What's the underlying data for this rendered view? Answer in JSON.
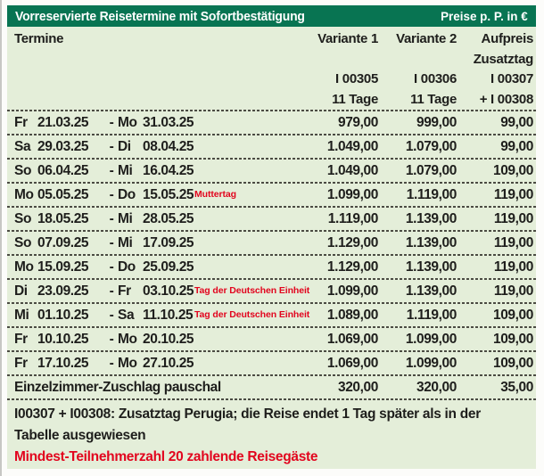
{
  "header": {
    "title": "Vorreservierte Reisetermine mit Sofortbestätigung",
    "price_note": "Preise p. P. in €"
  },
  "columns": {
    "termine": "Termine",
    "variante1": "Variante 1",
    "variante2": "Variante 2",
    "aufpreis": "Aufpreis",
    "zusatztag": "Zusatztag",
    "code_v1": "I 00305",
    "code_v2": "I 00306",
    "code_auf": "I 00307",
    "duration_v1": "11 Tage",
    "duration_v2": "11 Tage",
    "code_auf2": "+ I 00308"
  },
  "misc": {
    "range_separator": "-"
  },
  "rows": [
    {
      "wd1": "Fr",
      "d1": "21.03.25",
      "wd2": "Mo",
      "d2": "31.03.25",
      "note": "",
      "v1": "979,00",
      "v2": "999,00",
      "aufpreis": "99,00"
    },
    {
      "wd1": "Sa",
      "d1": "29.03.25",
      "wd2": "Di",
      "d2": "08.04.25",
      "note": "",
      "v1": "1.049,00",
      "v2": "1.079,00",
      "aufpreis": "99,00"
    },
    {
      "wd1": "So",
      "d1": "06.04.25",
      "wd2": "Mi",
      "d2": "16.04.25",
      "note": "",
      "v1": "1.049,00",
      "v2": "1.079,00",
      "aufpreis": "109,00"
    },
    {
      "wd1": "Mo",
      "d1": "05.05.25",
      "wd2": "Do",
      "d2": "15.05.25",
      "note": "Muttertag",
      "v1": "1.099,00",
      "v2": "1.119,00",
      "aufpreis": "119,00"
    },
    {
      "wd1": "So",
      "d1": "18.05.25",
      "wd2": "Mi",
      "d2": "28.05.25",
      "note": "",
      "v1": "1.119,00",
      "v2": "1.139,00",
      "aufpreis": "119,00"
    },
    {
      "wd1": "So",
      "d1": "07.09.25",
      "wd2": "Mi",
      "d2": "17.09.25",
      "note": "",
      "v1": "1.129,00",
      "v2": "1.139,00",
      "aufpreis": "119,00"
    },
    {
      "wd1": "Mo",
      "d1": "15.09.25",
      "wd2": "Do",
      "d2": "25.09.25",
      "note": "",
      "v1": "1.129,00",
      "v2": "1.139,00",
      "aufpreis": "119,00"
    },
    {
      "wd1": "Di",
      "d1": "23.09.25",
      "wd2": "Fr",
      "d2": "03.10.25",
      "note": "Tag der Deutschen Einheit",
      "v1": "1.099,00",
      "v2": "1.139,00",
      "aufpreis": "119,00"
    },
    {
      "wd1": "Mi",
      "d1": "01.10.25",
      "wd2": "Sa",
      "d2": "11.10.25",
      "note": "Tag der Deutschen Einheit",
      "v1": "1.089,00",
      "v2": "1.119,00",
      "aufpreis": "109,00"
    },
    {
      "wd1": "Fr",
      "d1": "10.10.25",
      "wd2": "Mo",
      "d2": "20.10.25",
      "note": "",
      "v1": "1.069,00",
      "v2": "1.099,00",
      "aufpreis": "109,00"
    },
    {
      "wd1": "Fr",
      "d1": "17.10.25",
      "wd2": "Mo",
      "d2": "27.10.25",
      "note": "",
      "v1": "1.069,00",
      "v2": "1.099,00",
      "aufpreis": "109,00"
    }
  ],
  "extra_row": {
    "label": "Einzelzimmer-Zuschlag pauschal",
    "v1": "320,00",
    "v2": "320,00",
    "aufpreis": "35,00"
  },
  "footnotes": {
    "zusatztag_note": "I00307 + I00308: Zusatztag Perugia; die Reise endet 1 Tag später als in der Tabelle ausgewiesen",
    "min_participants": "Mindest-Teilnehmerzahl 20 zahlende Reisegäste"
  },
  "colors": {
    "header_green": "#087452",
    "table_bg": "#e4eed9",
    "accent_red": "#e2051e",
    "ink": "#1e1e1c"
  }
}
